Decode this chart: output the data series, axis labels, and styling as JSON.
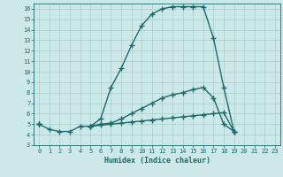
{
  "xlabel": "Humidex (Indice chaleur)",
  "background_color": "#cce8e8",
  "line_color": "#1a6b6b",
  "xlim": [
    -0.5,
    23.5
  ],
  "ylim": [
    3,
    16.5
  ],
  "xticks": [
    0,
    1,
    2,
    3,
    4,
    5,
    6,
    7,
    8,
    9,
    10,
    11,
    12,
    13,
    14,
    15,
    16,
    17,
    18,
    19,
    20,
    21,
    22,
    23
  ],
  "yticks": [
    3,
    4,
    5,
    6,
    7,
    8,
    9,
    10,
    11,
    12,
    13,
    14,
    15,
    16
  ],
  "line1_y": [
    5.0,
    4.5,
    4.3,
    4.3,
    4.8,
    4.8,
    5.5,
    8.5,
    10.3,
    12.5,
    14.4,
    15.5,
    16.0,
    16.2,
    16.2,
    16.2,
    16.2,
    13.2,
    8.5,
    4.3,
    null,
    null,
    null,
    null
  ],
  "line2_y": [
    5.0,
    null,
    null,
    null,
    null,
    4.8,
    5.0,
    5.1,
    5.5,
    6.0,
    6.5,
    7.0,
    7.5,
    7.8,
    8.0,
    8.3,
    8.5,
    7.5,
    5.0,
    4.3,
    null,
    null,
    null,
    null
  ],
  "line3_y": [
    5.0,
    null,
    null,
    null,
    null,
    4.8,
    4.9,
    5.0,
    5.1,
    5.2,
    5.3,
    5.4,
    5.5,
    5.6,
    5.7,
    5.8,
    5.9,
    6.0,
    6.1,
    4.3,
    null,
    null,
    null,
    null
  ],
  "grid_color": "#aacaca",
  "font_color": "#1a6b6b",
  "marker": "+",
  "markersize": 4,
  "linewidth": 1.0
}
